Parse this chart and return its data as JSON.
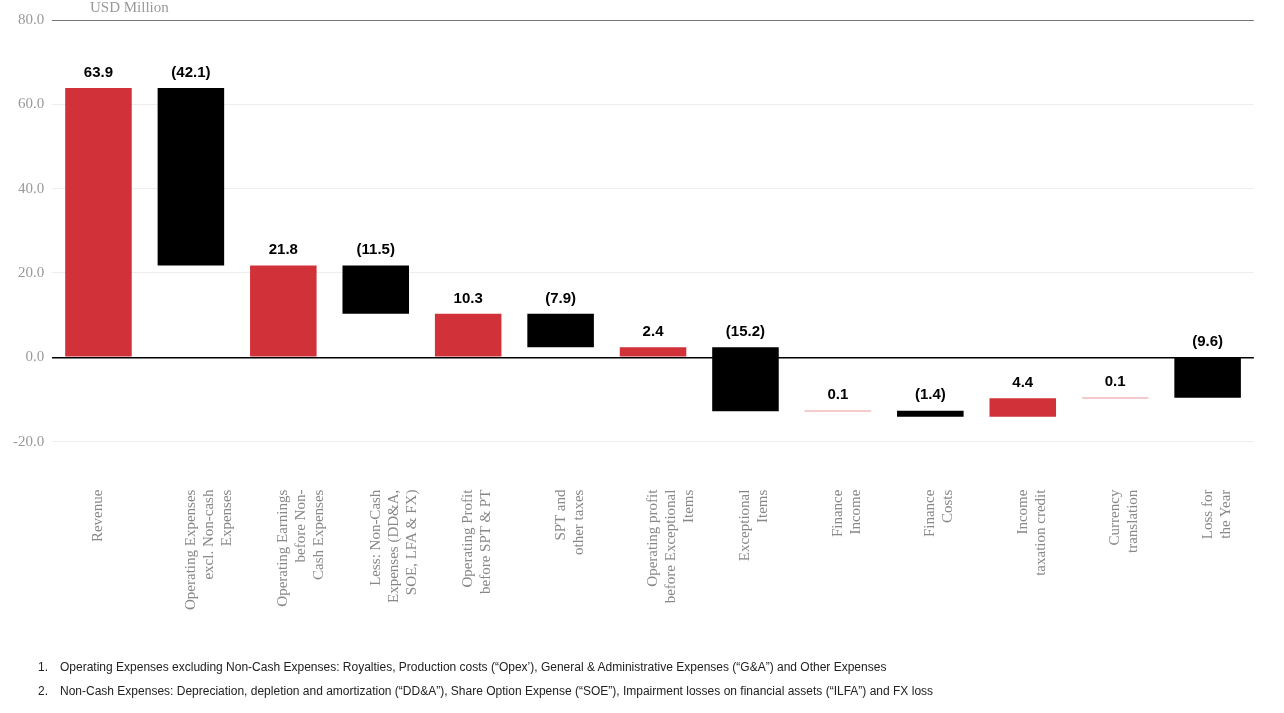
{
  "chart_data": {
    "type": "bar",
    "ylabel": "USD Million",
    "categories": [
      "Revenue",
      "Operating Expenses\nexcl. Non-cash\nExpenses",
      "Operating Earnings\nbefore Non-\nCash Expenses",
      "Less: Non-Cash\nExpenses (DD&A,\nSOE, LFA & FX)",
      "Operating Profit\nbefore SPT & PT",
      "SPT and\nother taxes",
      "Operating profit\nbefore Exceptional\nItems",
      "Exceptional\nItems",
      "Finance\nIncome",
      "Finance\nCosts",
      "Income\ntaxation credit",
      "Currency\ntranslation",
      "Loss for\nthe Year"
    ],
    "values": [
      63.9,
      -42.1,
      21.8,
      -11.5,
      10.3,
      -7.9,
      2.4,
      -15.2,
      0.1,
      -1.4,
      4.4,
      0.1,
      -9.6
    ],
    "base": [
      0,
      63.9,
      0,
      21.8,
      0,
      10.3,
      0,
      2.4,
      -12.8,
      -12.7,
      -14.1,
      -9.7,
      0
    ],
    "colors": [
      "#d13239",
      "#000000",
      "#d13239",
      "#000000",
      "#d13239",
      "#000000",
      "#d13239",
      "#000000",
      "#d13239",
      "#000000",
      "#d13239",
      "#d13239",
      "#000000"
    ],
    "value_labels": [
      "63.9",
      "(42.1)",
      "21.8",
      "(11.5)",
      "10.3",
      "(7.9)",
      "2.4",
      "(15.2)",
      "0.1",
      "(1.4)",
      "4.4",
      "0.1",
      "(9.6)"
    ],
    "ylim": [
      -20,
      80
    ],
    "yticks": [
      {
        "value": -20,
        "label": "-20.0"
      },
      {
        "value": 0,
        "label": "0.0"
      },
      {
        "value": 20,
        "label": "20.0"
      },
      {
        "value": 40,
        "label": "40.0"
      },
      {
        "value": 60,
        "label": "60.0"
      },
      {
        "value": 80,
        "label": "80.0"
      }
    ],
    "grid": "y",
    "legend": false,
    "annotations": [
      "1. Operating Expenses excluding Non-Cash Expenses: Royalties, Production costs (“Opex’), General & Administrative Expenses (“G&A”) and Other Expenses",
      "2. Non-Cash Expenses: Depreciation, depletion and amortization (“DD&A”), Share Option Expense (“SOE”), Impairment losses on financial assets (“ILFA”) and FX loss"
    ]
  }
}
